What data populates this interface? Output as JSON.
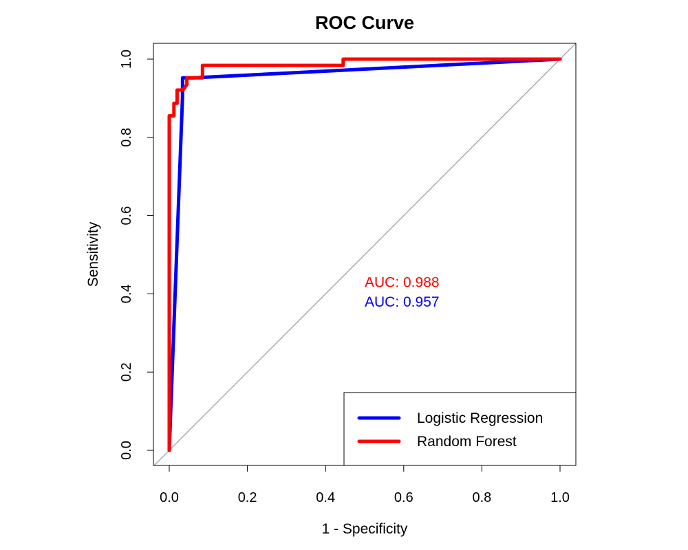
{
  "chart_data": {
    "type": "line",
    "title": "ROC Curve",
    "xlabel": "1 - Specificity",
    "ylabel": "Sensitivity",
    "xlim": [
      0.0,
      1.0
    ],
    "ylim": [
      0.0,
      1.0
    ],
    "xticks": [
      "0.0",
      "0.2",
      "0.4",
      "0.6",
      "0.8",
      "1.0"
    ],
    "yticks": [
      "0.0",
      "0.2",
      "0.4",
      "0.6",
      "0.8",
      "1.0"
    ],
    "grid": false,
    "legend_position": "bottom-right",
    "reference_line": {
      "from": [
        0,
        0
      ],
      "to": [
        1,
        1
      ],
      "color": "#a0a0a0"
    },
    "series": [
      {
        "name": "Logistic Regression",
        "color": "#0000ff",
        "points": [
          [
            0,
            0
          ],
          [
            0.034,
            0.905
          ],
          [
            0.034,
            0.952
          ],
          [
            0.06,
            0.952
          ],
          [
            1.0,
            1.0
          ]
        ]
      },
      {
        "name": "Random Forest",
        "color": "#ff0000",
        "points": [
          [
            0,
            0
          ],
          [
            0,
            0.855
          ],
          [
            0.012,
            0.855
          ],
          [
            0.012,
            0.887
          ],
          [
            0.02,
            0.887
          ],
          [
            0.02,
            0.921
          ],
          [
            0.035,
            0.921
          ],
          [
            0.045,
            0.935
          ],
          [
            0.045,
            0.952
          ],
          [
            0.085,
            0.952
          ],
          [
            0.085,
            0.984
          ],
          [
            0.445,
            0.984
          ],
          [
            0.445,
            1.0
          ],
          [
            1.0,
            1.0
          ]
        ]
      }
    ],
    "annotations": [
      {
        "text": "AUC: 0.988",
        "color": "#ff0000",
        "x": 0.5,
        "y": 0.43
      },
      {
        "text": "AUC: 0.957",
        "color": "#0000ff",
        "x": 0.5,
        "y": 0.38
      }
    ]
  }
}
